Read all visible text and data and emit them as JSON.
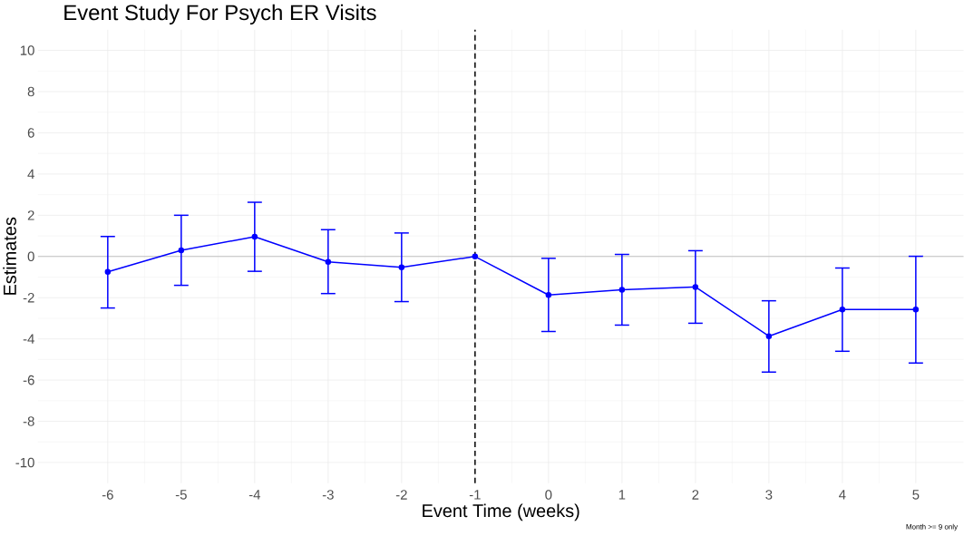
{
  "chart_data": {
    "type": "line",
    "title": "Event Study For Psych ER Visits",
    "xlabel": "Event Time (weeks)",
    "ylabel": "Estimates",
    "x": [
      -6,
      -5,
      -4,
      -3,
      -2,
      -1,
      0,
      1,
      2,
      3,
      4,
      5
    ],
    "series": [
      {
        "color": "#0000ff",
        "values": [
          -0.75,
          0.3,
          0.96,
          -0.26,
          -0.53,
          0,
          -1.87,
          -1.62,
          -1.48,
          -3.87,
          -2.57,
          -2.57
        ],
        "errors": [
          [
            -2.5,
            0.97
          ],
          [
            -1.4,
            2.0
          ],
          [
            -0.72,
            2.63
          ],
          [
            -1.8,
            1.3
          ],
          [
            -2.19,
            1.14
          ],
          null,
          [
            -3.64,
            -0.09
          ],
          [
            -3.33,
            0.1
          ],
          [
            -3.24,
            0.28
          ],
          [
            -5.61,
            -2.15
          ],
          [
            -4.6,
            -0.56
          ],
          [
            -5.17,
            0.01
          ]
        ]
      }
    ],
    "xlim": [
      -6.95,
      5.65
    ],
    "ylim": [
      -11,
      11
    ],
    "xticks": [
      -6,
      -5,
      -4,
      -3,
      -2,
      -1,
      0,
      1,
      2,
      3,
      4,
      5
    ],
    "yticks": [
      -10,
      -8,
      -6,
      -4,
      -2,
      0,
      2,
      4,
      6,
      8,
      10
    ],
    "ref_lines": [
      {
        "axis": "y",
        "value": 0,
        "color": "#bebebe",
        "line_style": "solid"
      },
      {
        "axis": "x",
        "value": -1,
        "color": "#000000",
        "line_style": "dashed"
      }
    ],
    "grid": true,
    "marker": "circle",
    "line_style": "solid",
    "annotations": [
      "Month >= 9 only"
    ]
  }
}
